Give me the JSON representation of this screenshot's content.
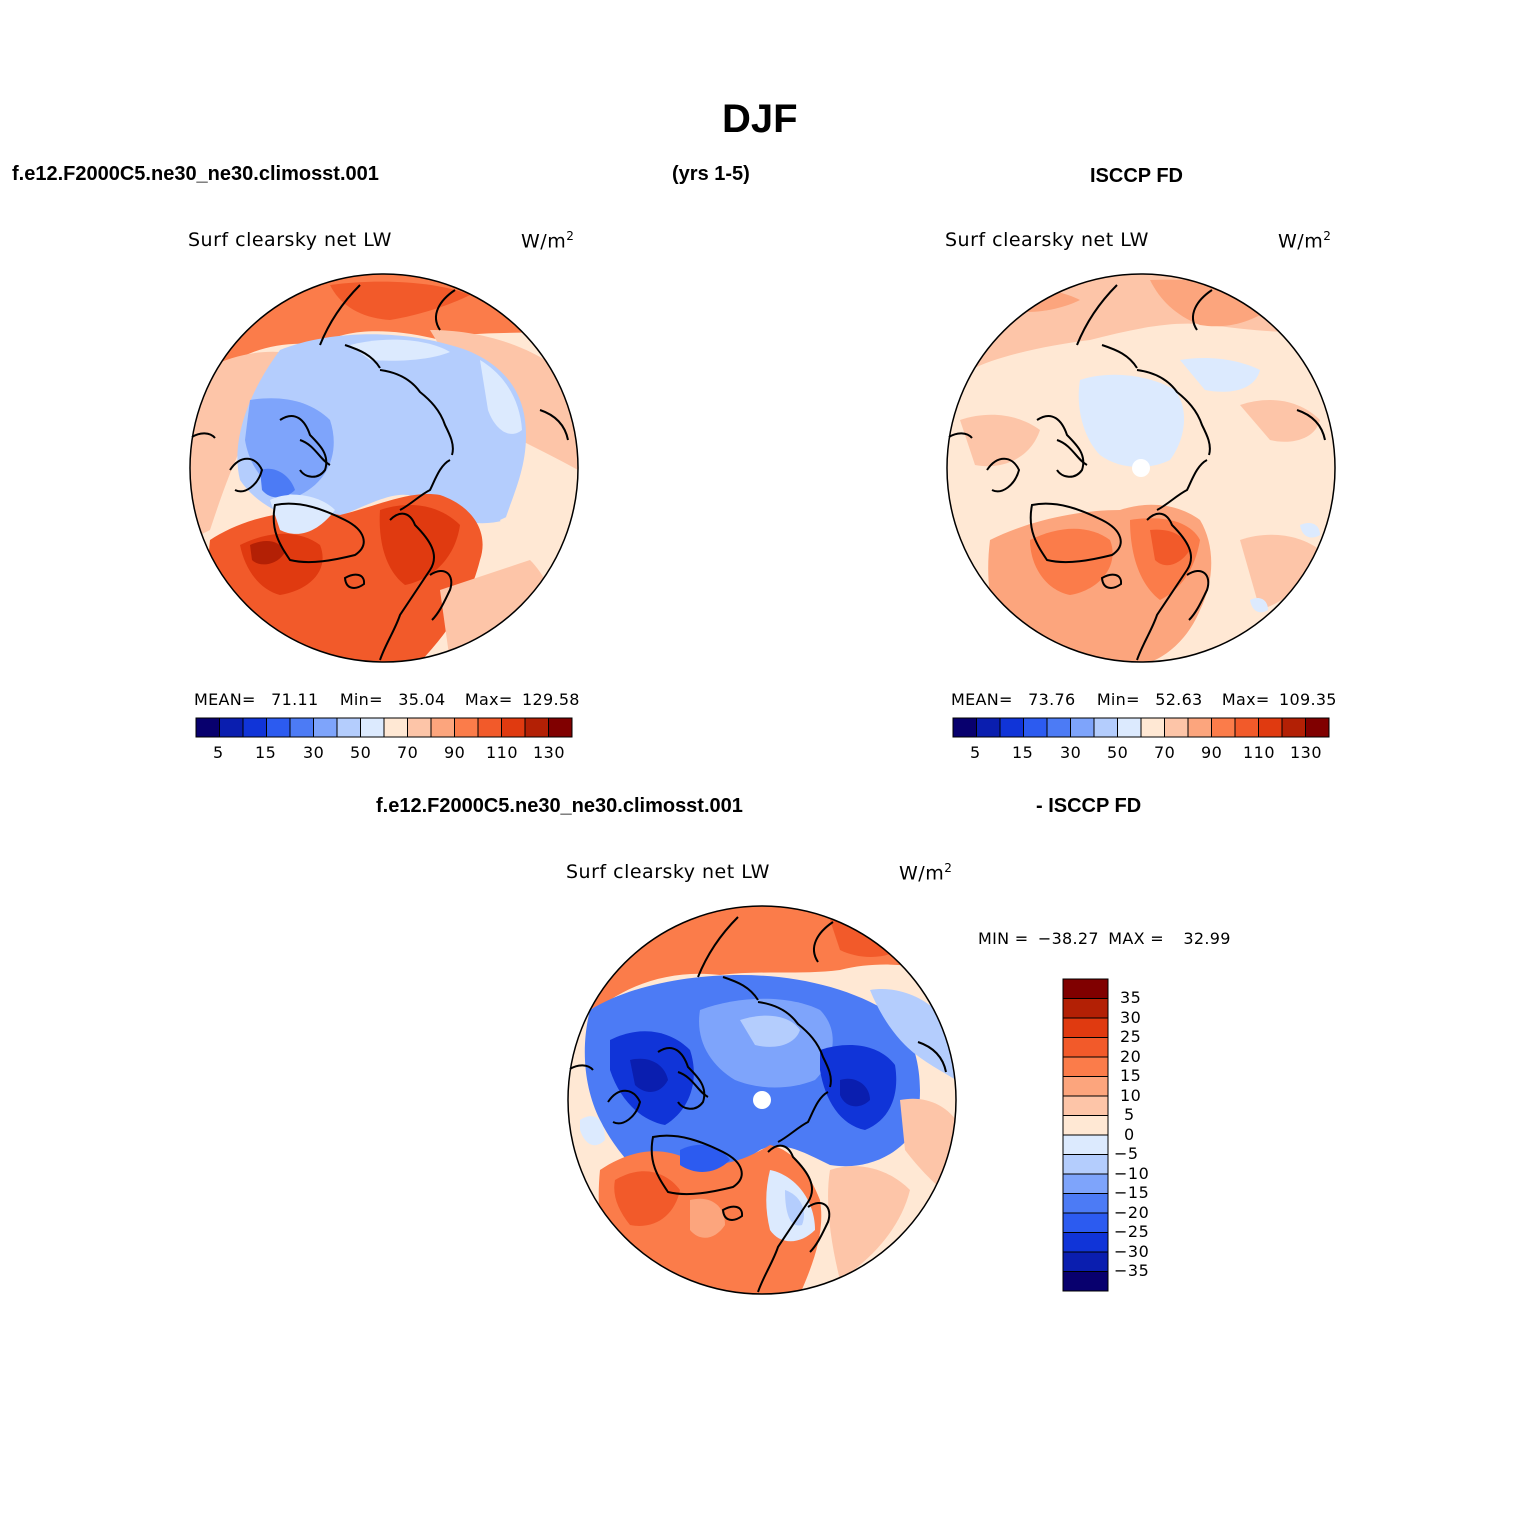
{
  "title": "DJF",
  "header": {
    "case_name": "f.e12.F2000C5.ne30_ne30.climosst.001",
    "years": "(yrs 1-5)",
    "obs_name": "ISCCP FD"
  },
  "diff_header": {
    "case_name": "f.e12.F2000C5.ne30_ne30.climosst.001",
    "obs_name": "- ISCCP FD"
  },
  "panels": [
    {
      "variable": "Surf clearsky net LW",
      "units_base": "W/m",
      "units_exp": "2",
      "stats": {
        "mean_label": "MEAN=",
        "mean": "71.11",
        "min_label": "Min=",
        "min": "35.04",
        "max_label": "Max=",
        "max": "129.58"
      },
      "colorbar_labels": [
        "5",
        "15",
        "30",
        "50",
        "70",
        "90",
        "110",
        "130"
      ]
    },
    {
      "variable": "Surf clearsky net LW",
      "units_base": "W/m",
      "units_exp": "2",
      "stats": {
        "mean_label": "MEAN=",
        "mean": "73.76",
        "min_label": "Min=",
        "min": "52.63",
        "max_label": "Max=",
        "max": "109.35"
      },
      "colorbar_labels": [
        "5",
        "15",
        "30",
        "50",
        "70",
        "90",
        "110",
        "130"
      ]
    },
    {
      "variable": "Surf clearsky net LW",
      "units_base": "W/m",
      "units_exp": "2",
      "stats": {
        "min_label": "MIN =",
        "min": "−38.27",
        "max_label": "MAX =",
        "max": "32.99"
      },
      "colorbar_labels": [
        "35",
        "30",
        "25",
        "20",
        "15",
        "10",
        "5",
        "0",
        "−5",
        "−10",
        "−15",
        "−20",
        "−25",
        "−30",
        "−35"
      ]
    }
  ],
  "colors": {
    "scale_16": [
      "#08006e",
      "#0a1eaf",
      "#1034d8",
      "#2c5bf0",
      "#4c7bf5",
      "#7ea4fb",
      "#b4cdfd",
      "#dceafe",
      "#ffe8d4",
      "#fdc5a8",
      "#fca57d",
      "#fb7c4a",
      "#f25a2a",
      "#e03a10",
      "#b32005",
      "#800000"
    ],
    "land_outline": "#000000"
  }
}
